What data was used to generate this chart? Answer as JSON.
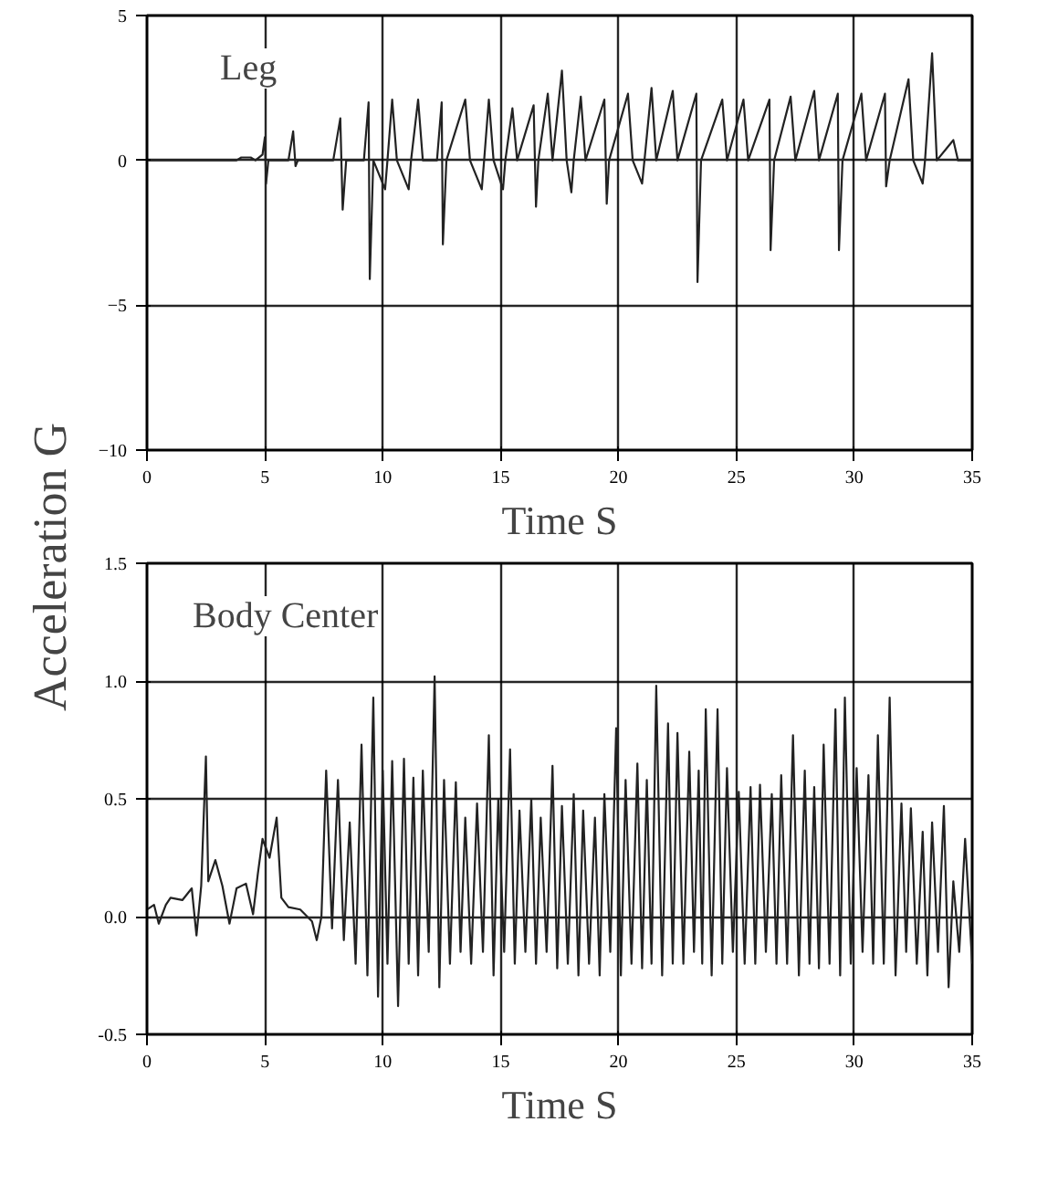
{
  "chart_data": [
    {
      "type": "line",
      "title": "Leg",
      "xlabel": "Time S",
      "ylabel": "Acceleration G",
      "xlim": [
        0,
        35
      ],
      "xticks": [
        0,
        5,
        10,
        15,
        20,
        25,
        30,
        35
      ],
      "ylim": [
        -10,
        5
      ],
      "yticks": [
        -10,
        -5,
        0,
        5
      ],
      "grid": true,
      "series": [
        {
          "color": "#222222",
          "x": [
            0,
            3.8,
            4.0,
            4.4,
            4.6,
            4.9,
            5.0,
            5.05,
            5.15,
            6.0,
            6.2,
            6.3,
            6.4,
            7.9,
            8.2,
            8.3,
            8.45,
            9.2,
            9.4,
            9.45,
            9.6,
            10.1,
            10.2,
            10.4,
            10.6,
            11.1,
            11.2,
            11.5,
            11.7,
            12.3,
            12.5,
            12.55,
            12.7,
            13.5,
            13.7,
            14.2,
            14.3,
            14.5,
            14.7,
            15.1,
            15.2,
            15.5,
            15.7,
            16.4,
            16.5,
            16.6,
            17.0,
            17.2,
            17.6,
            17.8,
            18.0,
            18.1,
            18.4,
            18.6,
            19.4,
            19.5,
            19.6,
            20.4,
            20.6,
            21.0,
            21.1,
            21.4,
            21.6,
            22.3,
            22.5,
            23.3,
            23.35,
            23.5,
            24.4,
            24.6,
            25.3,
            25.5,
            26.4,
            26.45,
            26.6,
            27.3,
            27.5,
            28.3,
            28.5,
            29.3,
            29.35,
            29.5,
            30.3,
            30.5,
            31.3,
            31.35,
            31.5,
            32.3,
            32.5,
            32.9,
            33.0,
            33.3,
            33.5,
            34.2,
            34.4,
            35
          ],
          "values": [
            0,
            0,
            0.1,
            0.1,
            0,
            0.2,
            0.8,
            -0.8,
            0,
            0,
            1.0,
            -0.2,
            0,
            0,
            1.45,
            -1.7,
            0,
            0,
            2.0,
            -4.1,
            0,
            -1.0,
            0,
            2.1,
            0,
            -1.0,
            0,
            2.1,
            0,
            0,
            2.0,
            -2.9,
            0,
            2.1,
            0,
            -1.0,
            0,
            2.1,
            0,
            -1.0,
            0,
            1.8,
            0,
            1.9,
            -1.6,
            0,
            2.3,
            0,
            3.1,
            0,
            -1.1,
            0,
            2.2,
            0,
            2.1,
            -1.5,
            0,
            2.3,
            0,
            -0.8,
            0,
            2.5,
            0,
            2.4,
            0,
            2.3,
            -4.2,
            0,
            2.1,
            0,
            2.1,
            0,
            2.1,
            -3.1,
            0,
            2.2,
            0,
            2.4,
            0,
            2.3,
            -3.1,
            0,
            2.3,
            0,
            2.3,
            -0.9,
            0,
            2.8,
            0,
            -0.8,
            0,
            3.7,
            0,
            0.7,
            0,
            0
          ]
        }
      ]
    },
    {
      "type": "line",
      "title": "Body Center",
      "xlabel": "Time S",
      "xlim": [
        0,
        35
      ],
      "xticks": [
        0,
        5,
        10,
        15,
        20,
        25,
        30,
        35
      ],
      "ylim": [
        -0.5,
        1.5
      ],
      "yticks": [
        {
          "value": -0.5,
          "label": "-0.5"
        },
        {
          "value": 0,
          "label": "0.0"
        },
        {
          "value": 0.5,
          "label": "0.5"
        },
        {
          "value": 1,
          "label": "1.0"
        },
        {
          "value": 1.5,
          "label": "1.5"
        }
      ],
      "grid": true,
      "series": [
        {
          "color": "#222222",
          "x": [
            0,
            0.3,
            0.5,
            0.8,
            1.0,
            1.5,
            1.9,
            2.1,
            2.3,
            2.5,
            2.6,
            2.9,
            3.2,
            3.5,
            3.8,
            4.2,
            4.5,
            4.7,
            4.9,
            5.2,
            5.5,
            5.7,
            6.0,
            6.5,
            7.0,
            7.2,
            7.4,
            7.6,
            7.85,
            8.1,
            8.35,
            8.6,
            8.85,
            9.1,
            9.35,
            9.6,
            9.8,
            10.0,
            10.2,
            10.4,
            10.65,
            10.9,
            11.1,
            11.3,
            11.5,
            11.7,
            11.95,
            12.2,
            12.4,
            12.6,
            12.85,
            13.1,
            13.3,
            13.5,
            13.75,
            14.0,
            14.25,
            14.5,
            14.7,
            14.9,
            15.15,
            15.4,
            15.6,
            15.8,
            16.05,
            16.3,
            16.5,
            16.7,
            16.95,
            17.2,
            17.4,
            17.6,
            17.85,
            18.1,
            18.3,
            18.5,
            18.75,
            19.0,
            19.2,
            19.4,
            19.65,
            19.9,
            20.1,
            20.3,
            20.55,
            20.8,
            21.0,
            21.2,
            21.4,
            21.6,
            21.85,
            22.1,
            22.3,
            22.5,
            22.75,
            23.0,
            23.2,
            23.4,
            23.55,
            23.7,
            23.95,
            24.2,
            24.4,
            24.6,
            24.85,
            25.1,
            25.35,
            25.6,
            25.8,
            26.0,
            26.25,
            26.5,
            26.7,
            26.9,
            27.15,
            27.4,
            27.65,
            27.9,
            28.1,
            28.3,
            28.5,
            28.7,
            28.95,
            29.2,
            29.4,
            29.6,
            29.85,
            30.1,
            30.35,
            30.6,
            30.8,
            31.0,
            31.25,
            31.5,
            31.75,
            32.0,
            32.2,
            32.4,
            32.65,
            32.9,
            33.1,
            33.3,
            33.55,
            33.8,
            34.0,
            34.2,
            34.45,
            34.7,
            35.0
          ],
          "values": [
            0.03,
            0.05,
            -0.03,
            0.05,
            0.08,
            0.07,
            0.12,
            -0.08,
            0.13,
            0.68,
            0.15,
            0.24,
            0.13,
            -0.03,
            0.12,
            0.14,
            0.01,
            0.18,
            0.33,
            0.25,
            0.42,
            0.08,
            0.04,
            0.03,
            -0.02,
            -0.1,
            0.0,
            0.62,
            -0.05,
            0.58,
            -0.1,
            0.4,
            -0.2,
            0.73,
            -0.25,
            0.93,
            -0.34,
            0.62,
            -0.2,
            0.66,
            -0.38,
            0.67,
            -0.2,
            0.59,
            -0.25,
            0.62,
            -0.15,
            1.02,
            -0.3,
            0.58,
            -0.2,
            0.57,
            -0.15,
            0.42,
            -0.2,
            0.48,
            -0.15,
            0.77,
            -0.25,
            0.5,
            -0.15,
            0.71,
            -0.2,
            0.45,
            -0.15,
            0.5,
            -0.2,
            0.42,
            -0.15,
            0.64,
            -0.22,
            0.47,
            -0.2,
            0.52,
            -0.25,
            0.45,
            -0.2,
            0.42,
            -0.25,
            0.52,
            -0.15,
            0.8,
            -0.25,
            0.58,
            -0.2,
            0.65,
            -0.22,
            0.58,
            -0.2,
            0.98,
            -0.25,
            0.82,
            -0.2,
            0.78,
            -0.2,
            0.7,
            -0.15,
            0.62,
            -0.2,
            0.88,
            -0.25,
            0.88,
            -0.2,
            0.63,
            -0.15,
            0.53,
            -0.2,
            0.55,
            -0.2,
            0.56,
            -0.15,
            0.52,
            -0.2,
            0.6,
            -0.2,
            0.77,
            -0.25,
            0.62,
            -0.2,
            0.55,
            -0.22,
            0.73,
            -0.2,
            0.88,
            -0.25,
            0.93,
            -0.2,
            0.63,
            -0.15,
            0.6,
            -0.2,
            0.77,
            -0.2,
            0.93,
            -0.25,
            0.48,
            -0.15,
            0.46,
            -0.2,
            0.36,
            -0.25,
            0.4,
            -0.15,
            0.47,
            -0.3,
            0.15,
            -0.15,
            0.33,
            -0.2
          ]
        }
      ]
    }
  ]
}
